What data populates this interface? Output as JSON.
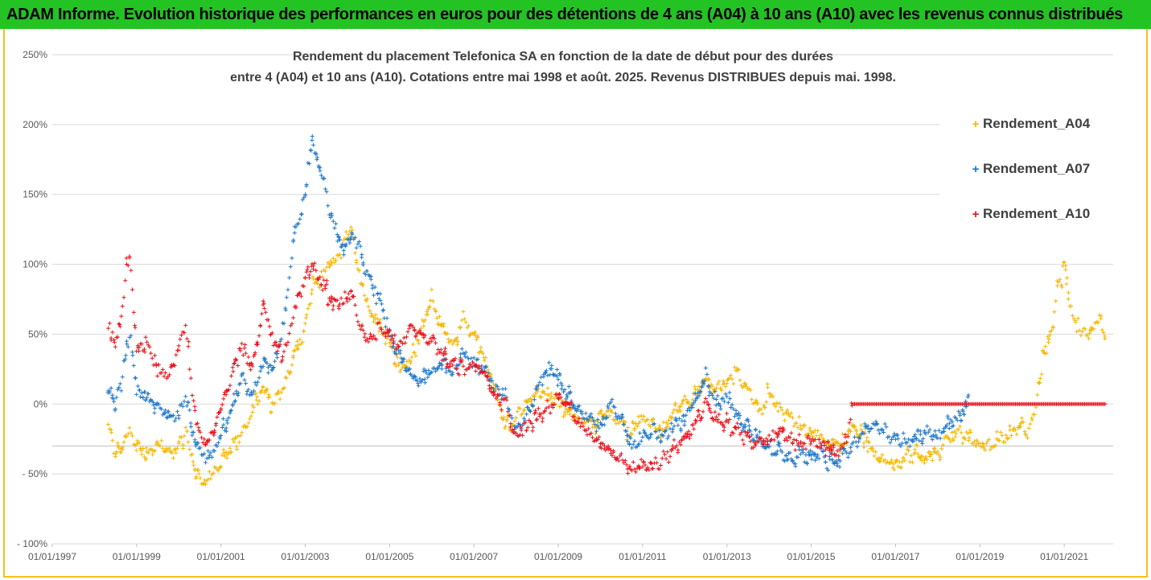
{
  "banner": {
    "title": "ADAM Informe. Evolution historique des performances en euros pour des détentions de 4 ans (A04) à 10 ans (A10) avec les revenus connus distribués",
    "color": "#23c323"
  },
  "chart_data": {
    "type": "scatter",
    "title_line1": "Rendement du placement Telefonica SA en fonction de la date de début pour des durées",
    "title_line2": "entre 4 (A04) et 10 ans (A10). Cotations entre mai 1998 et août. 2025. Revenus DISTRIBUES depuis mai. 1998.",
    "xlabel": "",
    "ylabel": "",
    "x_range": [
      "1997-01-01",
      "2022-03-01"
    ],
    "ylim": [
      -100,
      250
    ],
    "y_ticks": [
      250,
      200,
      150,
      100,
      50,
      0,
      -50,
      -100
    ],
    "y_tick_labels": [
      "250%",
      "200%",
      "150%",
      "100%",
      "50%",
      "0%",
      "- 50%",
      "- 100%"
    ],
    "x_ticks": [
      "1997-01-01",
      "1999-01-01",
      "2001-01-01",
      "2003-01-01",
      "2005-01-01",
      "2007-01-01",
      "2009-01-01",
      "2011-01-01",
      "2013-01-01",
      "2015-01-01",
      "2017-01-01",
      "2019-01-01",
      "2021-01-01"
    ],
    "x_tick_labels": [
      "01/01/1997",
      "01/01/1999",
      "01/01/2001",
      "01/01/2003",
      "01/01/2005",
      "01/01/2007",
      "01/01/2009",
      "01/01/2011",
      "01/01/2013",
      "01/01/2015",
      "01/01/2017",
      "01/01/2019",
      "01/01/2021"
    ],
    "reference_line_y": -30,
    "grid": "horizontal",
    "legend_position": "right",
    "marker": "+",
    "series": [
      {
        "name": "Rendement_A04",
        "color": "#f5b800",
        "points": [
          [
            "1998-05-01",
            -15
          ],
          [
            "1998-07-01",
            -38
          ],
          [
            "1998-09-01",
            -30
          ],
          [
            "1998-11-01",
            -20
          ],
          [
            "1999-01-01",
            -30
          ],
          [
            "1999-04-01",
            -35
          ],
          [
            "1999-07-01",
            -30
          ],
          [
            "1999-10-01",
            -35
          ],
          [
            "2000-01-01",
            -30
          ],
          [
            "2000-03-01",
            -22
          ],
          [
            "2000-06-01",
            -48
          ],
          [
            "2000-09-01",
            -55
          ],
          [
            "2001-01-01",
            -42
          ],
          [
            "2001-04-01",
            -30
          ],
          [
            "2001-07-01",
            -22
          ],
          [
            "2001-10-01",
            -5
          ],
          [
            "2002-01-01",
            10
          ],
          [
            "2002-04-01",
            -2
          ],
          [
            "2002-07-01",
            15
          ],
          [
            "2002-10-01",
            35
          ],
          [
            "2003-01-01",
            55
          ],
          [
            "2003-03-01",
            80
          ],
          [
            "2003-06-01",
            95
          ],
          [
            "2003-09-01",
            100
          ],
          [
            "2003-12-01",
            115
          ],
          [
            "2004-02-01",
            128
          ],
          [
            "2004-04-01",
            95
          ],
          [
            "2004-07-01",
            70
          ],
          [
            "2004-10-01",
            55
          ],
          [
            "2005-01-01",
            45
          ],
          [
            "2005-04-01",
            25
          ],
          [
            "2005-07-01",
            30
          ],
          [
            "2005-10-01",
            55
          ],
          [
            "2006-01-01",
            75
          ],
          [
            "2006-04-01",
            55
          ],
          [
            "2006-07-01",
            40
          ],
          [
            "2006-10-01",
            60
          ],
          [
            "2007-01-01",
            50
          ],
          [
            "2007-04-01",
            35
          ],
          [
            "2007-07-01",
            10
          ],
          [
            "2007-10-01",
            -15
          ],
          [
            "2008-01-01",
            -10
          ],
          [
            "2008-04-01",
            0
          ],
          [
            "2008-07-01",
            10
          ],
          [
            "2008-10-01",
            5
          ],
          [
            "2009-01-01",
            0
          ],
          [
            "2009-04-01",
            -5
          ],
          [
            "2009-07-01",
            -10
          ],
          [
            "2009-10-01",
            -15
          ],
          [
            "2010-01-01",
            -10
          ],
          [
            "2010-04-01",
            -5
          ],
          [
            "2010-07-01",
            -15
          ],
          [
            "2010-10-01",
            -20
          ],
          [
            "2011-01-01",
            -10
          ],
          [
            "2011-04-01",
            -15
          ],
          [
            "2011-07-01",
            -20
          ],
          [
            "2011-10-01",
            -5
          ],
          [
            "2012-01-01",
            0
          ],
          [
            "2012-04-01",
            5
          ],
          [
            "2012-07-01",
            15
          ],
          [
            "2012-10-01",
            10
          ],
          [
            "2013-01-01",
            15
          ],
          [
            "2013-04-01",
            22
          ],
          [
            "2013-07-01",
            10
          ],
          [
            "2013-10-01",
            -5
          ],
          [
            "2014-01-01",
            5
          ],
          [
            "2014-04-01",
            -5
          ],
          [
            "2014-07-01",
            -10
          ],
          [
            "2014-10-01",
            -15
          ],
          [
            "2015-01-01",
            -20
          ],
          [
            "2015-04-01",
            -25
          ],
          [
            "2015-07-01",
            -30
          ],
          [
            "2015-10-01",
            -28
          ],
          [
            "2016-01-01",
            -15
          ],
          [
            "2016-04-01",
            -25
          ],
          [
            "2016-07-01",
            -35
          ],
          [
            "2016-10-01",
            -40
          ],
          [
            "2017-01-01",
            -45
          ],
          [
            "2017-04-01",
            -38
          ],
          [
            "2017-07-01",
            -35
          ],
          [
            "2017-10-01",
            -40
          ],
          [
            "2018-01-01",
            -35
          ],
          [
            "2018-04-01",
            -25
          ],
          [
            "2018-07-01",
            -20
          ],
          [
            "2018-10-01",
            -25
          ],
          [
            "2019-01-01",
            -30
          ],
          [
            "2019-04-01",
            -30
          ],
          [
            "2019-07-01",
            -25
          ],
          [
            "2019-10-01",
            -20
          ],
          [
            "2020-01-01",
            -15
          ],
          [
            "2020-03-01",
            -20
          ],
          [
            "2020-05-01",
            0
          ],
          [
            "2020-07-01",
            35
          ],
          [
            "2020-09-01",
            50
          ],
          [
            "2020-11-01",
            80
          ],
          [
            "2021-01-01",
            100
          ],
          [
            "2021-03-01",
            65
          ],
          [
            "2021-05-01",
            55
          ],
          [
            "2021-07-01",
            50
          ],
          [
            "2021-09-01",
            55
          ],
          [
            "2021-11-01",
            60
          ],
          [
            "2022-01-01",
            48
          ]
        ]
      },
      {
        "name": "Rendement_A07",
        "color": "#1f77c8",
        "points": [
          [
            "1998-05-01",
            10
          ],
          [
            "1998-07-01",
            0
          ],
          [
            "1998-09-01",
            20
          ],
          [
            "1998-11-01",
            50
          ],
          [
            "1999-01-01",
            10
          ],
          [
            "1999-04-01",
            5
          ],
          [
            "1999-07-01",
            0
          ],
          [
            "1999-10-01",
            -10
          ],
          [
            "2000-01-01",
            -5
          ],
          [
            "2000-03-01",
            5
          ],
          [
            "2000-06-01",
            -30
          ],
          [
            "2000-09-01",
            -40
          ],
          [
            "2001-01-01",
            -25
          ],
          [
            "2001-04-01",
            -5
          ],
          [
            "2001-07-01",
            20
          ],
          [
            "2001-10-01",
            5
          ],
          [
            "2002-01-01",
            30
          ],
          [
            "2002-04-01",
            25
          ],
          [
            "2002-07-01",
            60
          ],
          [
            "2002-10-01",
            120
          ],
          [
            "2003-01-01",
            150
          ],
          [
            "2003-03-01",
            190
          ],
          [
            "2003-06-01",
            160
          ],
          [
            "2003-09-01",
            130
          ],
          [
            "2003-12-01",
            110
          ],
          [
            "2004-02-01",
            120
          ],
          [
            "2004-04-01",
            115
          ],
          [
            "2004-07-01",
            90
          ],
          [
            "2004-10-01",
            75
          ],
          [
            "2005-01-01",
            50
          ],
          [
            "2005-04-01",
            35
          ],
          [
            "2005-07-01",
            20
          ],
          [
            "2005-10-01",
            15
          ],
          [
            "2006-01-01",
            25
          ],
          [
            "2006-04-01",
            30
          ],
          [
            "2006-07-01",
            25
          ],
          [
            "2006-10-01",
            35
          ],
          [
            "2007-01-01",
            30
          ],
          [
            "2007-04-01",
            25
          ],
          [
            "2007-07-01",
            10
          ],
          [
            "2007-10-01",
            5
          ],
          [
            "2008-01-01",
            -20
          ],
          [
            "2008-04-01",
            -10
          ],
          [
            "2008-07-01",
            10
          ],
          [
            "2008-10-01",
            25
          ],
          [
            "2009-01-01",
            20
          ],
          [
            "2009-04-01",
            5
          ],
          [
            "2009-07-01",
            -5
          ],
          [
            "2009-10-01",
            -10
          ],
          [
            "2010-01-01",
            -20
          ],
          [
            "2010-04-01",
            0
          ],
          [
            "2010-07-01",
            -10
          ],
          [
            "2010-10-01",
            -30
          ],
          [
            "2011-01-01",
            -25
          ],
          [
            "2011-04-01",
            -20
          ],
          [
            "2011-07-01",
            -25
          ],
          [
            "2011-10-01",
            -15
          ],
          [
            "2012-01-01",
            -10
          ],
          [
            "2012-04-01",
            5
          ],
          [
            "2012-07-01",
            20
          ],
          [
            "2012-10-01",
            0
          ],
          [
            "2013-01-01",
            5
          ],
          [
            "2013-04-01",
            -10
          ],
          [
            "2013-07-01",
            -15
          ],
          [
            "2013-10-01",
            -25
          ],
          [
            "2014-01-01",
            -30
          ],
          [
            "2014-04-01",
            -35
          ],
          [
            "2014-07-01",
            -40
          ],
          [
            "2014-10-01",
            -35
          ],
          [
            "2015-01-01",
            -40
          ],
          [
            "2015-04-01",
            -35
          ],
          [
            "2015-07-01",
            -42
          ],
          [
            "2015-10-01",
            -38
          ],
          [
            "2016-01-01",
            -30
          ],
          [
            "2016-04-01",
            -20
          ],
          [
            "2016-07-01",
            -15
          ],
          [
            "2016-10-01",
            -20
          ],
          [
            "2017-01-01",
            -25
          ],
          [
            "2017-04-01",
            -30
          ],
          [
            "2017-07-01",
            -25
          ],
          [
            "2017-10-01",
            -20
          ],
          [
            "2018-01-01",
            -25
          ],
          [
            "2018-04-01",
            -15
          ],
          [
            "2018-07-01",
            -10
          ],
          [
            "2018-10-01",
            0
          ]
        ]
      },
      {
        "name": "Rendement_A10",
        "color": "#e8121c",
        "points": [
          [
            "1998-05-01",
            55
          ],
          [
            "1998-07-01",
            40
          ],
          [
            "1998-09-01",
            70
          ],
          [
            "1998-11-01",
            110
          ],
          [
            "1999-01-01",
            40
          ],
          [
            "1999-04-01",
            45
          ],
          [
            "1999-07-01",
            25
          ],
          [
            "1999-10-01",
            20
          ],
          [
            "2000-01-01",
            40
          ],
          [
            "2000-03-01",
            55
          ],
          [
            "2000-06-01",
            -15
          ],
          [
            "2000-09-01",
            -30
          ],
          [
            "2001-01-01",
            -5
          ],
          [
            "2001-04-01",
            20
          ],
          [
            "2001-07-01",
            40
          ],
          [
            "2001-10-01",
            25
          ],
          [
            "2002-01-01",
            70
          ],
          [
            "2002-04-01",
            45
          ],
          [
            "2002-07-01",
            35
          ],
          [
            "2002-10-01",
            70
          ],
          [
            "2003-01-01",
            90
          ],
          [
            "2003-03-01",
            100
          ],
          [
            "2003-06-01",
            85
          ],
          [
            "2003-09-01",
            70
          ],
          [
            "2003-12-01",
            75
          ],
          [
            "2004-02-01",
            80
          ],
          [
            "2004-04-01",
            60
          ],
          [
            "2004-07-01",
            45
          ],
          [
            "2004-10-01",
            55
          ],
          [
            "2005-01-01",
            50
          ],
          [
            "2005-04-01",
            40
          ],
          [
            "2005-07-01",
            55
          ],
          [
            "2005-10-01",
            50
          ],
          [
            "2006-01-01",
            45
          ],
          [
            "2006-04-01",
            35
          ],
          [
            "2006-07-01",
            30
          ],
          [
            "2006-10-01",
            25
          ],
          [
            "2007-01-01",
            30
          ],
          [
            "2007-04-01",
            20
          ],
          [
            "2007-07-01",
            5
          ],
          [
            "2007-10-01",
            0
          ],
          [
            "2008-01-01",
            -25
          ],
          [
            "2008-04-01",
            -15
          ],
          [
            "2008-07-01",
            -10
          ],
          [
            "2008-10-01",
            -5
          ],
          [
            "2009-01-01",
            5
          ],
          [
            "2009-04-01",
            0
          ],
          [
            "2009-07-01",
            -15
          ],
          [
            "2009-10-01",
            -20
          ],
          [
            "2010-01-01",
            -30
          ],
          [
            "2010-04-01",
            -35
          ],
          [
            "2010-07-01",
            -40
          ],
          [
            "2010-10-01",
            -48
          ],
          [
            "2011-01-01",
            -42
          ],
          [
            "2011-04-01",
            -45
          ],
          [
            "2011-07-01",
            -38
          ],
          [
            "2011-10-01",
            -30
          ],
          [
            "2012-01-01",
            -25
          ],
          [
            "2012-04-01",
            -15
          ],
          [
            "2012-07-01",
            0
          ],
          [
            "2012-10-01",
            -10
          ],
          [
            "2013-01-01",
            -15
          ],
          [
            "2013-04-01",
            -20
          ],
          [
            "2013-07-01",
            -25
          ],
          [
            "2013-10-01",
            -30
          ],
          [
            "2014-01-01",
            -25
          ],
          [
            "2014-04-01",
            -20
          ],
          [
            "2014-07-01",
            -25
          ],
          [
            "2014-10-01",
            -30
          ],
          [
            "2015-01-01",
            -25
          ],
          [
            "2015-04-01",
            -28
          ],
          [
            "2015-07-01",
            -32
          ],
          [
            "2015-10-01",
            -35
          ],
          [
            "2016-01-01",
            0
          ],
          [
            "2018-01-01",
            0
          ],
          [
            "2020-01-01",
            0
          ],
          [
            "2022-01-01",
            0
          ]
        ]
      }
    ]
  }
}
